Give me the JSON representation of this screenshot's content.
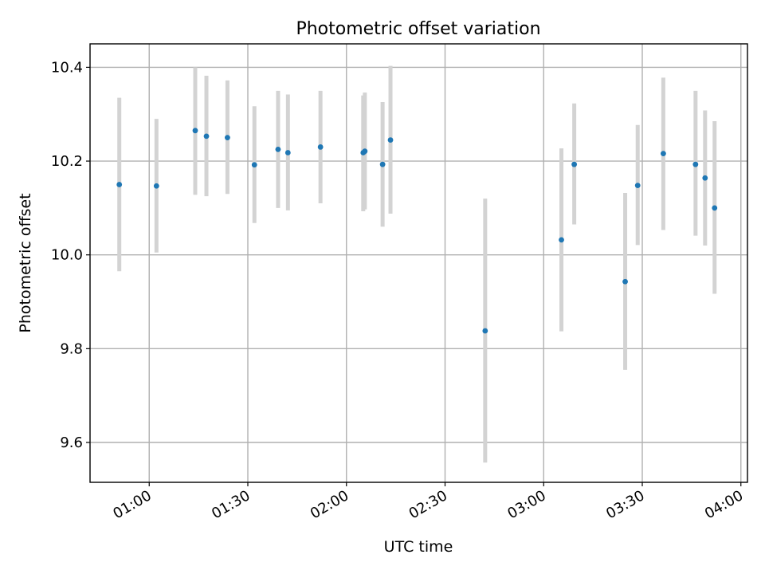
{
  "chart_data": {
    "type": "scatter",
    "title": "Photometric offset variation",
    "xlabel": "UTC time",
    "ylabel": "Photometric offset",
    "xlim": [
      42.0,
      242.0
    ],
    "ylim": [
      9.515,
      10.45
    ],
    "x_unit": "minutes since 00:00 UTC",
    "xticks": [
      {
        "value": 60,
        "label": "01:00"
      },
      {
        "value": 90,
        "label": "01:30"
      },
      {
        "value": 120,
        "label": "02:00"
      },
      {
        "value": 150,
        "label": "02:30"
      },
      {
        "value": 180,
        "label": "03:00"
      },
      {
        "value": 210,
        "label": "03:30"
      },
      {
        "value": 240,
        "label": "04:00"
      }
    ],
    "yticks": [
      {
        "value": 9.6,
        "label": "9.6"
      },
      {
        "value": 9.8,
        "label": "9.8"
      },
      {
        "value": 10.0,
        "label": "10.0"
      },
      {
        "value": 10.2,
        "label": "10.2"
      },
      {
        "value": 10.4,
        "label": "10.4"
      }
    ],
    "grid": true,
    "series": [
      {
        "name": "offset",
        "color": "#1f77b4",
        "errorbar_color": "#d3d3d3",
        "points": [
          {
            "x": 50.9,
            "y": 10.15,
            "ylow": 9.965,
            "yhigh": 10.335
          },
          {
            "x": 62.2,
            "y": 10.147,
            "ylow": 10.005,
            "yhigh": 10.29
          },
          {
            "x": 74.0,
            "y": 10.265,
            "ylow": 10.128,
            "yhigh": 10.4
          },
          {
            "x": 77.4,
            "y": 10.253,
            "ylow": 10.125,
            "yhigh": 10.382
          },
          {
            "x": 83.8,
            "y": 10.25,
            "ylow": 10.13,
            "yhigh": 10.372
          },
          {
            "x": 92.0,
            "y": 10.192,
            "ylow": 10.068,
            "yhigh": 10.317
          },
          {
            "x": 99.2,
            "y": 10.225,
            "ylow": 10.1,
            "yhigh": 10.35
          },
          {
            "x": 102.2,
            "y": 10.218,
            "ylow": 10.095,
            "yhigh": 10.342
          },
          {
            "x": 112.1,
            "y": 10.23,
            "ylow": 10.11,
            "yhigh": 10.35
          },
          {
            "x": 125.1,
            "y": 10.218,
            "ylow": 10.093,
            "yhigh": 10.34
          },
          {
            "x": 125.6,
            "y": 10.221,
            "ylow": 10.097,
            "yhigh": 10.346
          },
          {
            "x": 131.0,
            "y": 10.193,
            "ylow": 10.06,
            "yhigh": 10.326
          },
          {
            "x": 133.4,
            "y": 10.245,
            "ylow": 10.088,
            "yhigh": 10.403
          },
          {
            "x": 162.2,
            "y": 9.838,
            "ylow": 9.557,
            "yhigh": 10.12
          },
          {
            "x": 185.4,
            "y": 10.032,
            "ylow": 9.837,
            "yhigh": 10.227
          },
          {
            "x": 189.3,
            "y": 10.193,
            "ylow": 10.065,
            "yhigh": 10.323
          },
          {
            "x": 204.8,
            "y": 9.943,
            "ylow": 9.755,
            "yhigh": 10.132
          },
          {
            "x": 208.6,
            "y": 10.148,
            "ylow": 10.021,
            "yhigh": 10.277
          },
          {
            "x": 216.4,
            "y": 10.216,
            "ylow": 10.053,
            "yhigh": 10.378
          },
          {
            "x": 226.2,
            "y": 10.193,
            "ylow": 10.041,
            "yhigh": 10.35
          },
          {
            "x": 229.1,
            "y": 10.164,
            "ylow": 10.02,
            "yhigh": 10.308
          },
          {
            "x": 232.0,
            "y": 10.1,
            "ylow": 9.917,
            "yhigh": 10.285
          }
        ]
      }
    ]
  }
}
